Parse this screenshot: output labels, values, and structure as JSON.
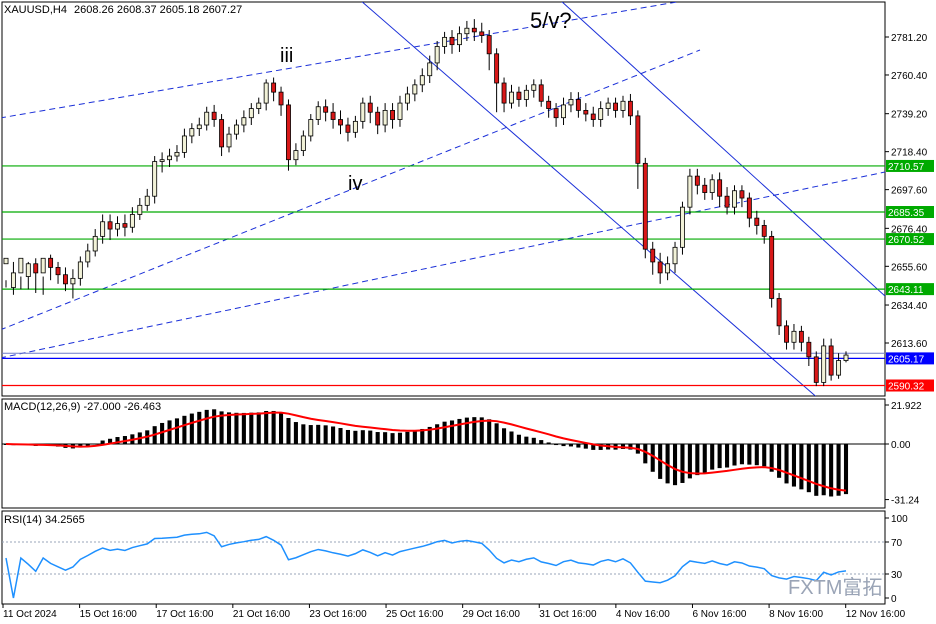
{
  "header": {
    "symbol": "XAUUSD,H4",
    "ohlc": "2608.26 2608.37 2605.18 2607.27"
  },
  "macd_header": "MACD(12,26,9) -27.000 -26.463",
  "rsi_header": "RSI(14) 34.2565",
  "watermark": "FXTM富拓",
  "wave_labels": [
    "iii",
    "iv",
    "5/v?"
  ],
  "colors": {
    "bull": "#f2f2d8",
    "bear": "#d81818",
    "wick": "#000000",
    "green_level": "#00aa00",
    "blue_level": "#0000ff",
    "red_level": "#ff0000",
    "channel": "#1a2fd8",
    "macd_signal": "#ff0000",
    "rsi_line": "#1e90ff"
  },
  "chart_data": [
    {
      "type": "candlestick",
      "title": "XAUUSD,H4",
      "y_ticks": [
        "2781.20",
        "2760.40",
        "2739.20",
        "2718.40",
        "2697.60",
        "2676.40",
        "2655.60",
        "2634.40",
        "2613.60"
      ],
      "price_levels": [
        {
          "value": "2710.57",
          "color": "green"
        },
        {
          "value": "2685.35",
          "color": "green"
        },
        {
          "value": "2670.52",
          "color": "green"
        },
        {
          "value": "2643.11",
          "color": "green"
        },
        {
          "value": "2605.17",
          "color": "blue"
        },
        {
          "value": "2590.32",
          "color": "red"
        }
      ],
      "x_labels": [
        "11 Oct 2024",
        "15 Oct 16:00",
        "17 Oct 16:00",
        "21 Oct 16:00",
        "23 Oct 16:00",
        "25 Oct 16:00",
        "29 Oct 16:00",
        "31 Oct 16:00",
        "4 Nov 16:00",
        "6 Nov 16:00",
        "8 Nov 16:00",
        "12 Nov 16:00"
      ],
      "annotations": [
        "iii",
        "iv",
        "5/v?"
      ],
      "candles": [
        [
          2657,
          2660,
          2648,
          2644
        ],
        [
          2644,
          2652,
          2658,
          2640
        ],
        [
          2652,
          2660,
          2650,
          2643
        ],
        [
          2650,
          2657,
          2658,
          2643
        ],
        [
          2657,
          2652,
          2660,
          2641
        ],
        [
          2652,
          2660,
          2650,
          2640
        ],
        [
          2660,
          2655,
          2662,
          2648
        ],
        [
          2655,
          2651,
          2658,
          2646
        ],
        [
          2651,
          2646,
          2655,
          2642
        ],
        [
          2646,
          2649,
          2654,
          2638
        ],
        [
          2649,
          2658,
          2661,
          2645
        ],
        [
          2658,
          2664,
          2668,
          2655
        ],
        [
          2664,
          2672,
          2676,
          2661
        ],
        [
          2672,
          2680,
          2684,
          2668
        ],
        [
          2680,
          2676,
          2684,
          2670
        ],
        [
          2676,
          2679,
          2683,
          2672
        ],
        [
          2679,
          2677,
          2684,
          2672
        ],
        [
          2677,
          2684,
          2688,
          2674
        ],
        [
          2684,
          2689,
          2693,
          2681
        ],
        [
          2689,
          2694,
          2698,
          2686
        ],
        [
          2694,
          2713,
          2716,
          2690
        ],
        [
          2713,
          2714,
          2718,
          2707
        ],
        [
          2714,
          2716,
          2720,
          2710
        ],
        [
          2716,
          2718,
          2722,
          2713
        ],
        [
          2718,
          2727,
          2731,
          2715
        ],
        [
          2727,
          2731,
          2734,
          2723
        ],
        [
          2731,
          2733,
          2737,
          2727
        ],
        [
          2733,
          2740,
          2743,
          2730
        ],
        [
          2740,
          2736,
          2744,
          2732
        ],
        [
          2736,
          2721,
          2739,
          2716
        ],
        [
          2721,
          2728,
          2732,
          2718
        ],
        [
          2728,
          2733,
          2736,
          2725
        ],
        [
          2733,
          2737,
          2741,
          2729
        ],
        [
          2737,
          2742,
          2745,
          2733
        ],
        [
          2742,
          2745,
          2748,
          2739
        ],
        [
          2745,
          2756,
          2758,
          2741
        ],
        [
          2756,
          2751,
          2759,
          2746
        ],
        [
          2751,
          2744,
          2754,
          2738
        ],
        [
          2744,
          2714,
          2747,
          2708
        ],
        [
          2714,
          2719,
          2723,
          2711
        ],
        [
          2719,
          2727,
          2730,
          2716
        ],
        [
          2727,
          2736,
          2739,
          2724
        ],
        [
          2736,
          2743,
          2746,
          2733
        ],
        [
          2743,
          2740,
          2747,
          2735
        ],
        [
          2740,
          2736,
          2745,
          2731
        ],
        [
          2736,
          2733,
          2741,
          2728
        ],
        [
          2733,
          2729,
          2737,
          2724
        ],
        [
          2729,
          2735,
          2738,
          2726
        ],
        [
          2735,
          2745,
          2748,
          2731
        ],
        [
          2745,
          2740,
          2749,
          2734
        ],
        [
          2740,
          2733,
          2743,
          2728
        ],
        [
          2733,
          2741,
          2745,
          2729
        ],
        [
          2741,
          2736,
          2745,
          2731
        ],
        [
          2736,
          2745,
          2749,
          2732
        ],
        [
          2745,
          2750,
          2754,
          2741
        ],
        [
          2750,
          2755,
          2758,
          2746
        ],
        [
          2755,
          2760,
          2764,
          2751
        ],
        [
          2760,
          2767,
          2771,
          2756
        ],
        [
          2767,
          2776,
          2779,
          2763
        ],
        [
          2776,
          2781,
          2784,
          2772
        ],
        [
          2781,
          2777,
          2785,
          2772
        ],
        [
          2777,
          2783,
          2787,
          2773
        ],
        [
          2783,
          2786,
          2790,
          2779
        ],
        [
          2786,
          2784,
          2791,
          2779
        ],
        [
          2784,
          2782,
          2789,
          2778
        ],
        [
          2782,
          2772,
          2785,
          2763
        ],
        [
          2772,
          2756,
          2775,
          2740
        ],
        [
          2756,
          2745,
          2759,
          2740
        ],
        [
          2745,
          2751,
          2755,
          2742
        ],
        [
          2751,
          2747,
          2754,
          2743
        ],
        [
          2747,
          2752,
          2755,
          2743
        ],
        [
          2752,
          2755,
          2758,
          2748
        ],
        [
          2755,
          2746,
          2758,
          2743
        ],
        [
          2746,
          2742,
          2749,
          2737
        ],
        [
          2742,
          2737,
          2745,
          2732
        ],
        [
          2737,
          2744,
          2748,
          2733
        ],
        [
          2744,
          2747,
          2751,
          2740
        ],
        [
          2747,
          2741,
          2751,
          2737
        ],
        [
          2741,
          2739,
          2745,
          2735
        ],
        [
          2739,
          2736,
          2743,
          2732
        ],
        [
          2736,
          2742,
          2746,
          2732
        ],
        [
          2742,
          2745,
          2748,
          2738
        ],
        [
          2745,
          2741,
          2748,
          2737
        ],
        [
          2741,
          2746,
          2749,
          2737
        ],
        [
          2746,
          2738,
          2750,
          2733
        ],
        [
          2738,
          2712,
          2741,
          2698
        ],
        [
          2712,
          2665,
          2715,
          2660
        ],
        [
          2665,
          2658,
          2669,
          2651
        ],
        [
          2658,
          2652,
          2663,
          2646
        ],
        [
          2652,
          2657,
          2661,
          2648
        ],
        [
          2657,
          2666,
          2669,
          2652
        ],
        [
          2666,
          2688,
          2691,
          2662
        ],
        [
          2688,
          2705,
          2709,
          2684
        ],
        [
          2705,
          2700,
          2709,
          2695
        ],
        [
          2700,
          2696,
          2704,
          2692
        ],
        [
          2696,
          2703,
          2706,
          2692
        ],
        [
          2703,
          2694,
          2707,
          2688
        ],
        [
          2694,
          2688,
          2699,
          2684
        ],
        [
          2688,
          2697,
          2700,
          2684
        ],
        [
          2697,
          2693,
          2700,
          2688
        ],
        [
          2693,
          2682,
          2696,
          2677
        ],
        [
          2682,
          2678,
          2686,
          2673
        ],
        [
          2678,
          2672,
          2681,
          2668
        ],
        [
          2672,
          2638,
          2675,
          2633
        ],
        [
          2638,
          2623,
          2641,
          2618
        ],
        [
          2623,
          2614,
          2626,
          2610
        ],
        [
          2614,
          2620,
          2624,
          2610
        ],
        [
          2620,
          2614,
          2623,
          2609
        ],
        [
          2614,
          2606,
          2617,
          2601
        ],
        [
          2606,
          2592,
          2609,
          2590
        ],
        [
          2592,
          2612,
          2616,
          2590
        ],
        [
          2612,
          2596,
          2616,
          2593
        ],
        [
          2596,
          2604,
          2608,
          2594
        ],
        [
          2604,
          2607,
          2609,
          2603
        ]
      ]
    },
    {
      "type": "bar",
      "title": "MACD(12,26,9)",
      "y_ticks": [
        "21.922",
        "0.00",
        "-31.24"
      ],
      "macd_current": -27.0,
      "signal_current": -26.463
    },
    {
      "type": "line",
      "title": "RSI(14)",
      "y_ticks": [
        "100",
        "70",
        "30",
        "0"
      ],
      "rsi_current": 34.2565
    }
  ]
}
